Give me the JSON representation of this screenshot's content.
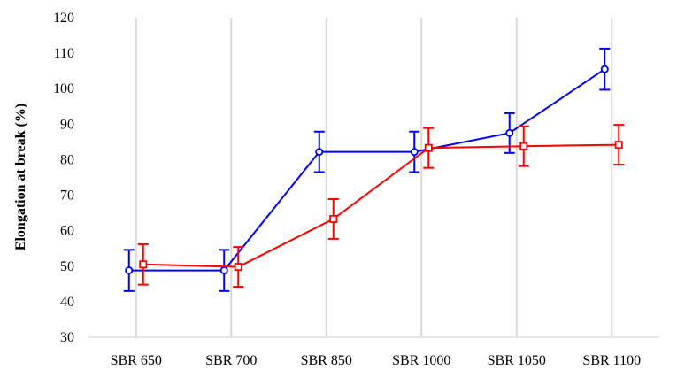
{
  "chart_data": {
    "type": "line",
    "title": "",
    "xlabel": "",
    "ylabel": "Elongation at break (%)",
    "categories": [
      "SBR 650",
      "SBR 700",
      "SBR 850",
      "SBR 1000",
      "SBR 1050",
      "SBR 1100"
    ],
    "ylim": [
      30,
      120
    ],
    "yticks": [
      30,
      40,
      50,
      60,
      70,
      80,
      90,
      100,
      110,
      120
    ],
    "grid": "vertical",
    "legend": "none",
    "series": [
      {
        "color": "#0000ff",
        "marker": "circle",
        "values": [
          48.8,
          48.8,
          82.2,
          82.2,
          87.5,
          105.5
        ],
        "errors": [
          5.8,
          5.8,
          5.7,
          5.7,
          5.6,
          5.8
        ]
      },
      {
        "color": "#ff0000",
        "marker": "square",
        "values": [
          50.5,
          49.8,
          63.3,
          83.3,
          83.8,
          84.2
        ],
        "errors": [
          5.7,
          5.6,
          5.6,
          5.6,
          5.6,
          5.6
        ]
      }
    ]
  }
}
